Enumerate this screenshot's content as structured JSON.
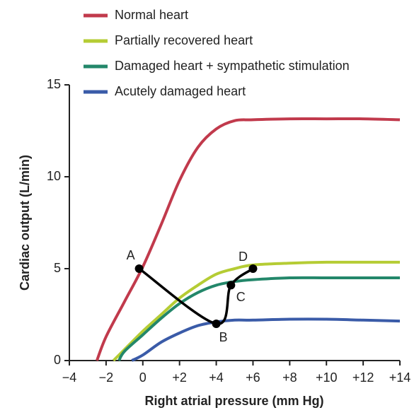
{
  "chart_data": {
    "type": "line",
    "xlabel": "Right atrial pressure (mm Hg)",
    "ylabel": "Cardiac output (L/min)",
    "xlim": [
      -4,
      14
    ],
    "ylim": [
      0,
      15
    ],
    "xticks": [
      {
        "value": -4,
        "label": "−4"
      },
      {
        "value": -2,
        "label": "−2"
      },
      0,
      {
        "value": 2,
        "label": "+2"
      },
      {
        "value": 4,
        "label": "+4"
      },
      {
        "value": 6,
        "label": "+6"
      },
      {
        "value": 8,
        "label": "+8"
      },
      {
        "value": 10,
        "label": "+10"
      },
      {
        "value": 12,
        "label": "+12"
      },
      {
        "value": 14,
        "label": "+14"
      }
    ],
    "yticks": [
      0,
      5,
      10,
      15
    ],
    "series": [
      {
        "name": "Normal heart",
        "color": "#c13a4c",
        "x": [
          -2.5,
          -2,
          -1,
          0,
          1,
          2,
          3,
          4,
          5,
          6,
          8,
          10,
          12,
          14
        ],
        "values": [
          0,
          1.3,
          3.2,
          5.1,
          7.4,
          9.8,
          11.6,
          12.6,
          13.05,
          13.1,
          13.15,
          13.15,
          13.15,
          13.1
        ]
      },
      {
        "name": "Partially recovered heart",
        "color": "#b5cc34",
        "x": [
          -1.6,
          -1,
          0,
          1,
          2,
          3,
          4,
          5,
          6,
          8,
          10,
          12,
          14
        ],
        "values": [
          0,
          0.6,
          1.6,
          2.5,
          3.4,
          4.1,
          4.7,
          5.0,
          5.2,
          5.3,
          5.35,
          5.35,
          5.35
        ]
      },
      {
        "name": "Damaged heart + sympathetic stimulation",
        "color": "#23876a",
        "x": [
          -1.3,
          -1,
          0,
          1,
          2,
          3,
          4,
          5,
          6,
          8,
          10,
          12,
          14
        ],
        "values": [
          0,
          0.5,
          1.4,
          2.3,
          3.1,
          3.7,
          4.1,
          4.3,
          4.4,
          4.5,
          4.5,
          4.5,
          4.5
        ]
      },
      {
        "name": "Acutely damaged heart",
        "color": "#3a5ba8",
        "x": [
          -0.6,
          0,
          1,
          2,
          3,
          4,
          5,
          6,
          8,
          10,
          12,
          14
        ],
        "values": [
          0,
          0.3,
          1.0,
          1.5,
          1.9,
          2.1,
          2.2,
          2.2,
          2.25,
          2.25,
          2.2,
          2.15
        ]
      }
    ],
    "points": {
      "labels": [
        "A",
        "B",
        "C",
        "D"
      ],
      "x": [
        -0.2,
        4,
        4.8,
        6
      ],
      "values": [
        5,
        2,
        4.1,
        5
      ],
      "color": "#000000"
    }
  }
}
